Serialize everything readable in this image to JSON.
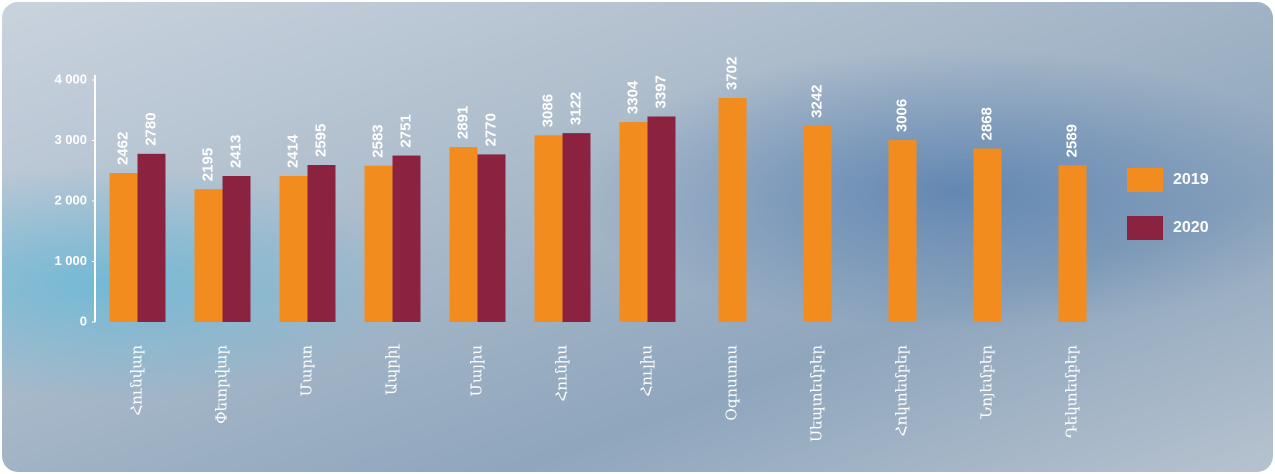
{
  "chart_data": {
    "type": "bar",
    "categories": [
      "Հունվար",
      "Փետրվար",
      "Մարտ",
      "Ապրիլ",
      "Մայիս",
      "Հունիս",
      "Հուլիս",
      "Օգոստոս",
      "Սեպտեմբեր",
      "Հոկտեմբեր",
      "Նոյեմբեր",
      "Դեկտեմբեր"
    ],
    "series": [
      {
        "name": "2019",
        "color": "#f28c1e",
        "values": [
          2462,
          2195,
          2414,
          2583,
          2891,
          3086,
          3304,
          3702,
          3242,
          3006,
          2868,
          2589
        ]
      },
      {
        "name": "2020",
        "color": "#8b2340",
        "values": [
          2780,
          2413,
          2595,
          2751,
          2770,
          3122,
          3397,
          null,
          null,
          null,
          null,
          null
        ]
      }
    ],
    "ylim": [
      0,
      4000
    ],
    "yticks": [
      0,
      {
        "value": 1000,
        "label": "1 000"
      },
      {
        "value": 2000,
        "label": "2 000"
      },
      {
        "value": 3000,
        "label": "3 000"
      },
      {
        "value": 4000,
        "label": "4 000"
      }
    ],
    "legend": "right"
  }
}
